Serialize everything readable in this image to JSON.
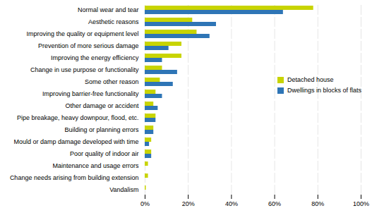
{
  "chart_data": {
    "type": "bar",
    "orientation": "horizontal",
    "categories": [
      "Normal wear and tear",
      "Aesthetic reasons",
      "Improving the quality or equipment level",
      "Prevention of more serious damage",
      "Improving the energy efficiency",
      "Change in use purpose or functionality",
      "Some other reason",
      "Improving barrier-free functionality",
      "Other damage or accident",
      "Pipe breakage, heavy downpour, flood, etc.",
      "Building or planning errors",
      "Mould or damp damage developed with time",
      "Poor quality of indoor air",
      "Maintenance and usage errors",
      "Change needs arising from building extension",
      "Vandalism"
    ],
    "series": [
      {
        "name": "Detached house",
        "color": "#c8d400",
        "values": [
          78,
          22,
          24,
          17,
          17,
          8,
          7,
          5,
          4,
          5,
          4,
          3,
          3,
          1.5,
          1.5,
          0.5
        ]
      },
      {
        "name": "Dwellings in blocks of flats",
        "color": "#2e75b6",
        "values": [
          64,
          33,
          30,
          11,
          8,
          15,
          13,
          8,
          6,
          5,
          4,
          2,
          3,
          0,
          0,
          0
        ]
      }
    ],
    "xlim": [
      0,
      100
    ],
    "xticks": [
      {
        "value": 0,
        "label": "0%"
      },
      {
        "value": 20,
        "label": "20%"
      },
      {
        "value": 40,
        "label": "40%"
      },
      {
        "value": 60,
        "label": "60%"
      },
      {
        "value": 80,
        "label": "80%"
      },
      {
        "value": 100,
        "label": "100%"
      }
    ],
    "grid": true,
    "legend": "right"
  }
}
